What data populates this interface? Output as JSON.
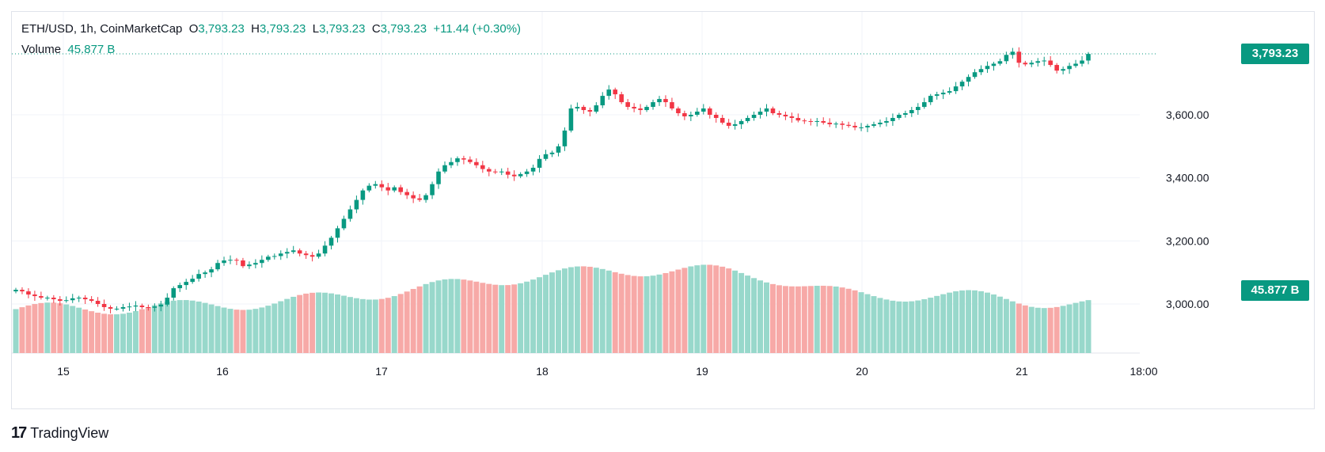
{
  "legend": {
    "symbol": "ETH/USD, 1h, CoinMarketCap",
    "open_label": "O",
    "open": "3,793.23",
    "high_label": "H",
    "high": "3,793.23",
    "low_label": "L",
    "low": "3,793.23",
    "close_label": "C",
    "close": "3,793.23",
    "change": "+11.44 (+0.30%)",
    "volume_label": "Volume",
    "volume_value": "45.877 B"
  },
  "price_tag": "3,793.23",
  "volume_tag": "45.877 B",
  "branding": "TradingView",
  "colors": {
    "up": "#089981",
    "down": "#f23645",
    "vol_up": "#98d8cb",
    "vol_down": "#f7a9a7",
    "grid": "#f0f3fa"
  },
  "chart_data": {
    "type": "candlestick",
    "price_axis": {
      "ticks": [
        3000,
        3200,
        3400,
        3600
      ],
      "tick_labels": [
        "3,000.00",
        "3,200.00",
        "3,400.00",
        "3,600.00"
      ]
    },
    "time_axis": {
      "tick_labels": [
        "15",
        "16",
        "17",
        "18",
        "19",
        "20",
        "21",
        "18:00"
      ]
    },
    "last_price": 3793.23,
    "series_hourly_close": [
      3045,
      3040,
      3030,
      3025,
      3020,
      3020,
      3015,
      3010,
      3012,
      3018,
      3020,
      3015,
      3010,
      3000,
      2990,
      2985,
      2985,
      2990,
      2992,
      2995,
      2990,
      2988,
      2992,
      2998,
      3020,
      3050,
      3060,
      3070,
      3080,
      3095,
      3100,
      3110,
      3130,
      3138,
      3140,
      3138,
      3120,
      3125,
      3130,
      3140,
      3150,
      3152,
      3160,
      3165,
      3170,
      3160,
      3155,
      3150,
      3160,
      3185,
      3210,
      3240,
      3270,
      3300,
      3330,
      3360,
      3375,
      3380,
      3370,
      3360,
      3370,
      3355,
      3345,
      3335,
      3330,
      3345,
      3380,
      3420,
      3440,
      3450,
      3462,
      3458,
      3450,
      3440,
      3428,
      3420,
      3418,
      3420,
      3410,
      3405,
      3412,
      3420,
      3432,
      3460,
      3475,
      3480,
      3500,
      3550,
      3620,
      3625,
      3615,
      3610,
      3630,
      3660,
      3680,
      3665,
      3640,
      3625,
      3620,
      3615,
      3625,
      3640,
      3650,
      3640,
      3620,
      3605,
      3595,
      3600,
      3610,
      3620,
      3600,
      3590,
      3575,
      3565,
      3570,
      3580,
      3590,
      3600,
      3610,
      3620,
      3605,
      3600,
      3595,
      3590,
      3582,
      3580,
      3578,
      3580,
      3575,
      3570,
      3572,
      3568,
      3565,
      3560,
      3560,
      3565,
      3570,
      3575,
      3580,
      3590,
      3600,
      3605,
      3615,
      3625,
      3640,
      3660,
      3665,
      3670,
      3675,
      3690,
      3705,
      3720,
      3735,
      3745,
      3755,
      3762,
      3770,
      3790,
      3800,
      3765,
      3760,
      3765,
      3770,
      3772,
      3758,
      3740,
      3745,
      3755,
      3762,
      3772,
      3793
    ],
    "volume_relative": "smooth hill-shaped volume profile, highest mid-period"
  }
}
